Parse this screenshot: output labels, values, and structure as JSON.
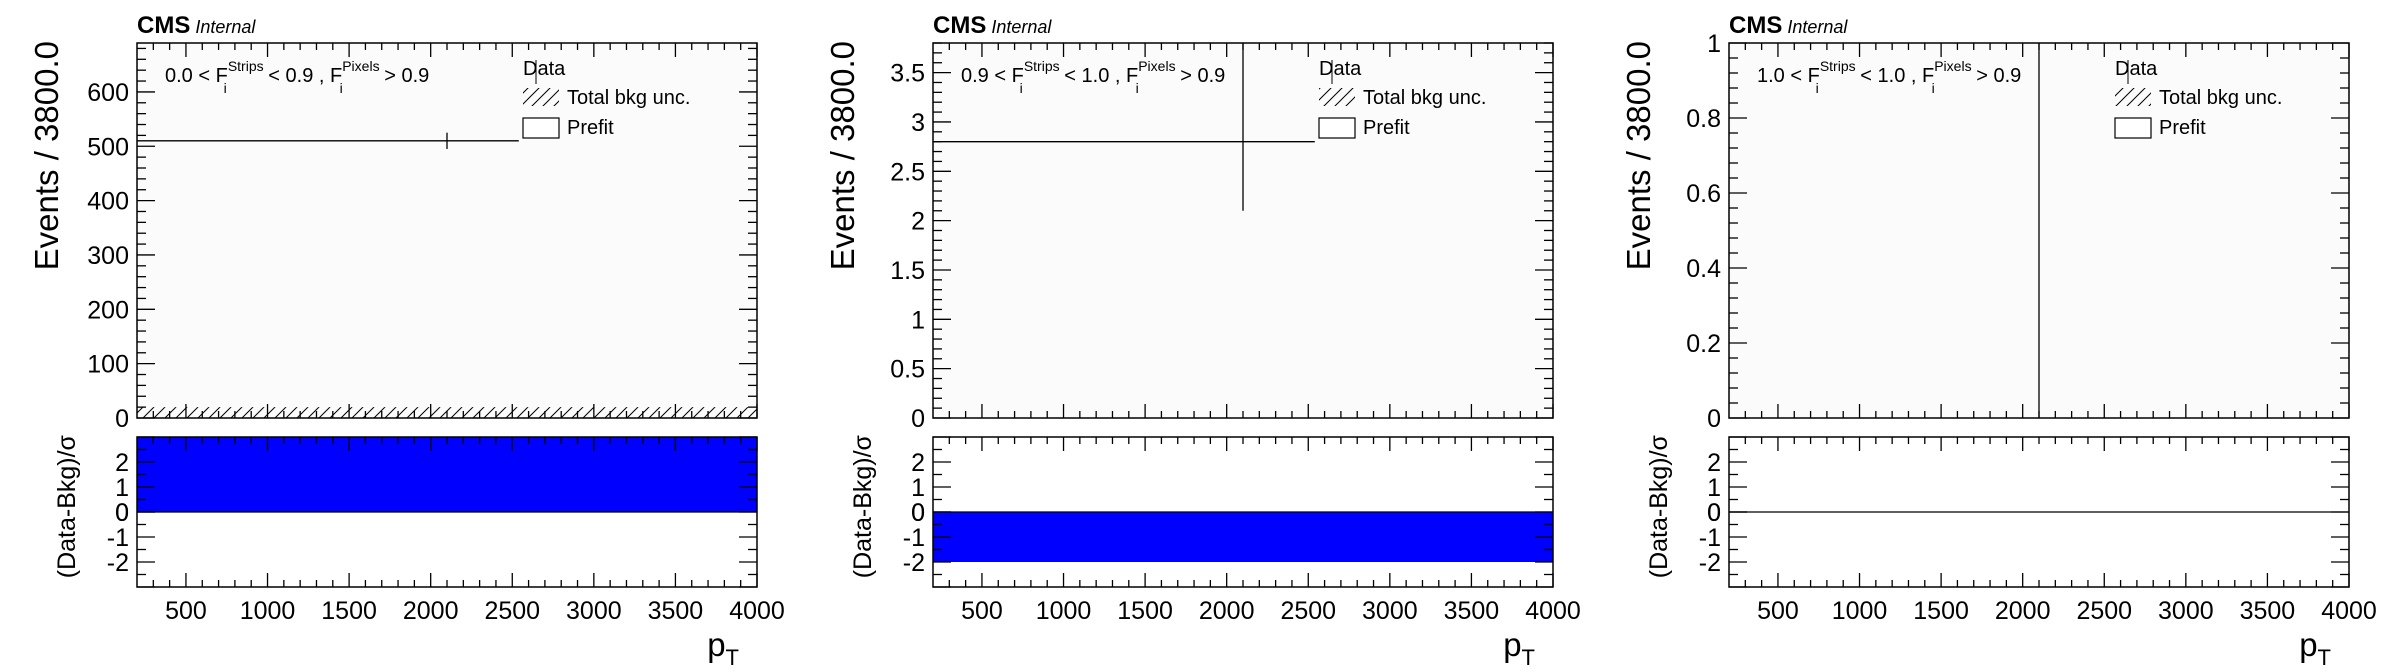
{
  "chart_data": [
    {
      "type": "bar",
      "experiment_label": "CMS",
      "experiment_status": "Internal",
      "region_label": "0.0 < F_i^Strips < 0.9 , F_i^Pixels > 0.9",
      "region_text": {
        "a": "0.0 < F",
        "a_sup": "Strips",
        "a_sub": "i",
        "b": " < 0.9 , F",
        "b_sup": "Pixels",
        "b_sub": "i",
        "c": " > 0.9"
      },
      "legend": [
        "Data",
        "Total bkg unc.",
        "Prefit"
      ],
      "ylabel": "Events / 3800.0",
      "ratio_ylabel": "(Data-Bkg)/σ",
      "xlabel": "p",
      "xlabel_sub": "T",
      "xlim": [
        200,
        4000
      ],
      "xticks": [
        "500",
        "1000",
        "1500",
        "2000",
        "2500",
        "3000",
        "3500",
        "4000"
      ],
      "ylim": [
        0,
        690
      ],
      "yticks": [
        "0",
        "100",
        "200",
        "300",
        "400",
        "500",
        "600"
      ],
      "bins": [
        [
          200,
          4000
        ]
      ],
      "prefit_bkg": [
        0
      ],
      "bkg_unc": [
        20
      ],
      "data_x": 2100,
      "data_y": 510,
      "data_err": 15,
      "data_line_x": [
        200,
        2540
      ],
      "ratio_ylim": [
        -3,
        3
      ],
      "ratio_yticks": [
        "-2",
        "-1",
        "0",
        "1",
        "2"
      ],
      "ratio_values": [
        3
      ],
      "ratio_color": "#0000ff"
    },
    {
      "type": "bar",
      "experiment_label": "CMS",
      "experiment_status": "Internal",
      "region_label": "0.9 < F_i^Strips < 1.0 , F_i^Pixels > 0.9",
      "region_text": {
        "a": "0.9 < F",
        "a_sup": "Strips",
        "a_sub": "i",
        "b": " < 1.0 , F",
        "b_sup": "Pixels",
        "b_sub": "i",
        "c": " > 0.9"
      },
      "legend": [
        "Data",
        "Total bkg unc.",
        "Prefit"
      ],
      "ylabel": "Events / 3800.0",
      "ratio_ylabel": "(Data-Bkg)/σ",
      "xlabel": "p",
      "xlabel_sub": "T",
      "xlim": [
        200,
        4000
      ],
      "xticks": [
        "500",
        "1000",
        "1500",
        "2000",
        "2500",
        "3000",
        "3500",
        "4000"
      ],
      "ylim": [
        0,
        3.8
      ],
      "yticks": [
        "0",
        "0.5",
        "1",
        "1.5",
        "2",
        "2.5",
        "3",
        "3.5"
      ],
      "bins": [
        [
          200,
          4000
        ]
      ],
      "prefit_bkg": [
        0
      ],
      "bkg_unc": [
        0
      ],
      "data_x": 2100,
      "data_y": 2.8,
      "data_err_low": 2.1,
      "data_err_high": 3.8,
      "data_line_x": [
        200,
        2540
      ],
      "ratio_ylim": [
        -3,
        3
      ],
      "ratio_yticks": [
        "-2",
        "-1",
        "0",
        "1",
        "2"
      ],
      "ratio_values": [
        -2
      ],
      "ratio_color": "#0000ff"
    },
    {
      "type": "bar",
      "experiment_label": "CMS",
      "experiment_status": "Internal",
      "region_label": "1.0 < F_i^Strips < 1.0 , F_i^Pixels > 0.9",
      "region_text": {
        "a": "1.0 < F",
        "a_sup": "Strips",
        "a_sub": "i",
        "b": " < 1.0 , F",
        "b_sup": "Pixels",
        "b_sub": "i",
        "c": " > 0.9"
      },
      "legend": [
        "Data",
        "Total bkg unc.",
        "Prefit"
      ],
      "ylabel": "Events / 3800.0",
      "ratio_ylabel": "(Data-Bkg)/σ",
      "xlabel": "p",
      "xlabel_sub": "T",
      "xlim": [
        200,
        4000
      ],
      "xticks": [
        "500",
        "1000",
        "1500",
        "2000",
        "2500",
        "3000",
        "3500",
        "4000"
      ],
      "ylim": [
        0,
        1
      ],
      "yticks": [
        "0",
        "0.2",
        "0.4",
        "0.6",
        "0.8",
        "1"
      ],
      "bins": [
        [
          200,
          4000
        ]
      ],
      "prefit_bkg": [
        0
      ],
      "bkg_unc": [
        0
      ],
      "data_x": 2100,
      "data_y": 0,
      "data_err_low": 0,
      "data_err_high": 1,
      "ratio_ylim": [
        -3,
        3
      ],
      "ratio_yticks": [
        "-2",
        "-1",
        "0",
        "1",
        "2"
      ],
      "ratio_values": [
        0
      ],
      "ratio_color": "#0000ff"
    }
  ]
}
